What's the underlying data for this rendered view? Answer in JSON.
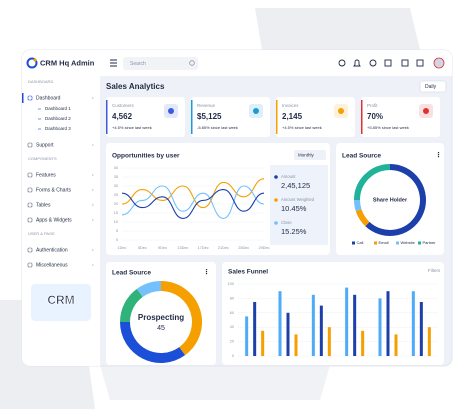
{
  "header": {
    "brand": "CRM Hq Admin",
    "search": "Search"
  },
  "sidebar": {
    "sections": [
      {
        "label": "DASHBOARD",
        "items": [
          {
            "label": "Dashboard",
            "children": [
              "Dashboard 1",
              "Dashboard 2",
              "Dashboard 3"
            ]
          },
          {
            "label": "Support"
          }
        ]
      },
      {
        "label": "COMPONENTS",
        "items": [
          {
            "label": "Features"
          },
          {
            "label": "Forms & Charts"
          },
          {
            "label": "Tables"
          },
          {
            "label": "Apps & Widgets"
          }
        ]
      },
      {
        "label": "USER & PAGE",
        "items": [
          {
            "label": "Authentication"
          },
          {
            "label": "Miscellaneous"
          }
        ]
      }
    ],
    "badge": "CRM"
  },
  "main": {
    "title": "Sales Analytics",
    "period": "Daily",
    "stats": [
      {
        "label": "Customers",
        "value": "4,562",
        "change": "+4.5% since last week",
        "color": "#3b5bdb",
        "change_color": "#2f9e44"
      },
      {
        "label": "Revenue",
        "value": "$5,125",
        "change": "-5.85% since last week",
        "color": "#1c9ad6",
        "change_color": "#e03131"
      },
      {
        "label": "Invoices",
        "value": "2,145",
        "change": "+4.5% since last week",
        "color": "#f59f00",
        "change_color": "#2f9e44"
      },
      {
        "label": "Profit",
        "value": "70%",
        "change": "+5.85% since last week",
        "color": "#e03131",
        "change_color": "#e03131"
      }
    ]
  },
  "opportunities": {
    "title": "Opportunities by user",
    "filter": "Monthly",
    "chart": {
      "type": "line",
      "categories": [
        "1Dec",
        "5Dec",
        "9Dec",
        "13Dec",
        "17Dec",
        "21Dec",
        "25Dec",
        "29Dec"
      ],
      "series": [
        {
          "color": "#f59f00",
          "values": [
            20,
            28,
            22,
            30,
            18,
            32,
            24,
            34
          ]
        },
        {
          "color": "#74c0fc",
          "values": [
            14,
            22,
            30,
            16,
            26,
            12,
            30,
            20
          ]
        },
        {
          "color": "#1c3faa",
          "values": [
            26,
            18,
            24,
            12,
            22,
            28,
            16,
            26
          ]
        }
      ],
      "ylim": [
        0,
        40
      ],
      "yticks": [
        0,
        5,
        10,
        15,
        20,
        25,
        30,
        35,
        40
      ],
      "grid": true
    },
    "summary": [
      {
        "label": "Amount",
        "value": "2,45,125",
        "color": "#1c3faa"
      },
      {
        "label": "Amount Weighted",
        "value": "10.45%",
        "color": "#f59f00"
      },
      {
        "label": "Close",
        "value": "15.25%",
        "color": "#74c0fc"
      }
    ]
  },
  "lead_source": {
    "title": "Lead Source",
    "center": "Share Holder",
    "chart": {
      "type": "pie",
      "categories": [
        "Call",
        "Email",
        "Website",
        "Partner"
      ],
      "values": [
        62,
        8,
        5,
        25
      ],
      "colors": [
        "#1c3faa",
        "#f59f00",
        "#74c0fc",
        "#20b39a"
      ]
    }
  },
  "lead_source_2": {
    "title": "Lead Source",
    "center": "Prospecting",
    "center_value": 45,
    "chart": {
      "type": "pie",
      "values": [
        40,
        35,
        15,
        10
      ],
      "colors": [
        "#f59f00",
        "#1c4fd8",
        "#2fb37a",
        "#74c0fc"
      ]
    }
  },
  "sales_funnel": {
    "title": "Sales Funnel",
    "filter": "Filters",
    "chart": {
      "type": "bar",
      "series": [
        {
          "color": "#4dabf7",
          "values": [
            55,
            90,
            85,
            95,
            80,
            90
          ]
        },
        {
          "color": "#1c3faa",
          "values": [
            75,
            60,
            70,
            85,
            90,
            75
          ]
        },
        {
          "color": "#f59f00",
          "values": [
            35,
            30,
            40,
            35,
            30,
            40
          ]
        }
      ],
      "ylim": [
        0,
        100
      ],
      "yticks": [
        0,
        20,
        40,
        60,
        80,
        100
      ],
      "grid": true
    }
  }
}
